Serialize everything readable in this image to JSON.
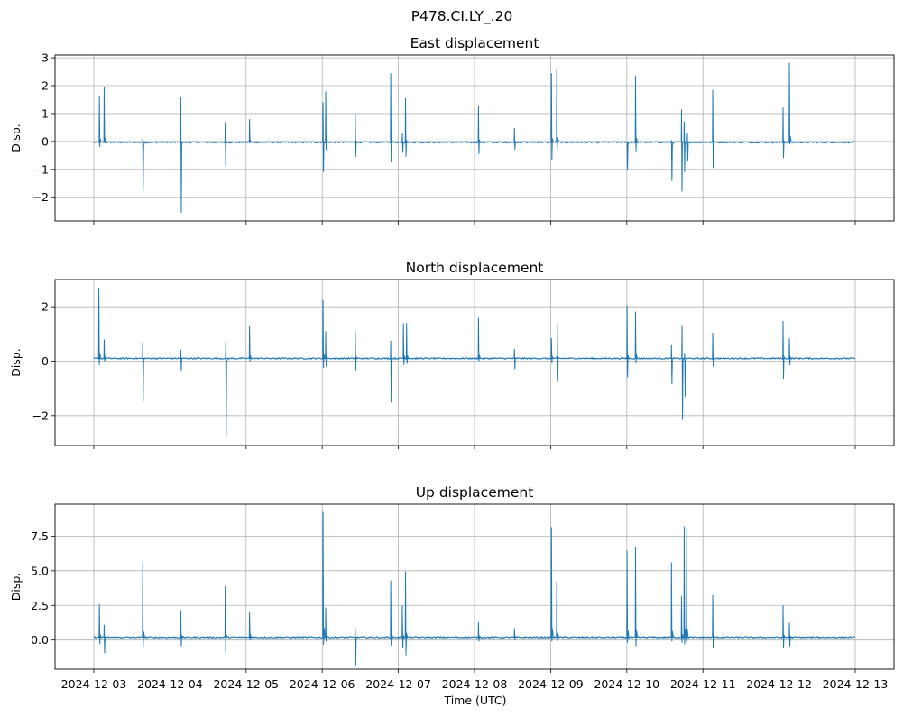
{
  "figure": {
    "suptitle": "P478.CI.LY_.20",
    "xlabel": "Time (UTC)",
    "line_color": "#1f77b4",
    "grid_color": "#b0b0b0"
  },
  "chart_data": [
    {
      "type": "line",
      "title": "East displacement",
      "ylabel": "Disp.",
      "xlabel": "",
      "xlim": [
        "2024-12-03",
        "2024-12-13"
      ],
      "ylim": [
        -2.85,
        3.1
      ],
      "yticks": [
        -2,
        -1,
        0,
        1,
        2,
        3
      ],
      "ytick_labels": [
        "−2",
        "−1",
        "0",
        "1",
        "2",
        "3"
      ],
      "grid": true,
      "baseline": -0.03,
      "spikes": [
        {
          "t": "2024-12-03 01:40",
          "min": -0.2,
          "max": 1.65
        },
        {
          "t": "2024-12-03 03:10",
          "min": -0.05,
          "max": 1.95
        },
        {
          "t": "2024-12-03 15:20",
          "min": -1.78,
          "max": 0.1
        },
        {
          "t": "2024-12-04 03:20",
          "min": -2.55,
          "max": 1.6
        },
        {
          "t": "2024-12-04 17:20",
          "min": -0.88,
          "max": 0.7
        },
        {
          "t": "2024-12-05 01:00",
          "min": -0.05,
          "max": 0.8
        },
        {
          "t": "2024-12-06 00:10",
          "min": -1.1,
          "max": 1.4
        },
        {
          "t": "2024-12-06 01:00",
          "min": -0.3,
          "max": 1.8
        },
        {
          "t": "2024-12-06 10:20",
          "min": -0.55,
          "max": 1.0
        },
        {
          "t": "2024-12-06 21:30",
          "min": -0.75,
          "max": 2.45
        },
        {
          "t": "2024-12-07 01:10",
          "min": -0.4,
          "max": 0.3
        },
        {
          "t": "2024-12-07 02:10",
          "min": -0.55,
          "max": 1.55
        },
        {
          "t": "2024-12-08 01:10",
          "min": -0.45,
          "max": 1.3
        },
        {
          "t": "2024-12-08 12:30",
          "min": -0.3,
          "max": 0.48
        },
        {
          "t": "2024-12-09 00:10",
          "min": -0.65,
          "max": 2.45
        },
        {
          "t": "2024-12-09 01:50",
          "min": -0.35,
          "max": 2.6
        },
        {
          "t": "2024-12-10 00:00",
          "min": -1.0,
          "max": 0.0
        },
        {
          "t": "2024-12-10 02:40",
          "min": -0.35,
          "max": 2.35
        },
        {
          "t": "2024-12-10 14:00",
          "min": -1.42,
          "max": 0.05
        },
        {
          "t": "2024-12-10 17:10",
          "min": -1.8,
          "max": 1.15
        },
        {
          "t": "2024-12-10 18:00",
          "min": -1.1,
          "max": 0.72
        },
        {
          "t": "2024-12-10 19:00",
          "min": -0.7,
          "max": 0.3
        },
        {
          "t": "2024-12-11 03:00",
          "min": -0.95,
          "max": 1.85
        },
        {
          "t": "2024-12-12 01:10",
          "min": -0.6,
          "max": 1.22
        },
        {
          "t": "2024-12-12 03:10",
          "min": -0.1,
          "max": 2.82
        }
      ]
    },
    {
      "type": "line",
      "title": "North displacement",
      "ylabel": "Disp.",
      "xlabel": "",
      "xlim": [
        "2024-12-03",
        "2024-12-13"
      ],
      "ylim": [
        -3.1,
        3.0
      ],
      "yticks": [
        -2,
        0,
        2
      ],
      "ytick_labels": [
        "−2",
        "0",
        "2"
      ],
      "grid": true,
      "baseline": 0.1,
      "spikes": [
        {
          "t": "2024-12-03 01:30",
          "min": -0.15,
          "max": 2.7
        },
        {
          "t": "2024-12-03 03:10",
          "min": 0.0,
          "max": 0.8
        },
        {
          "t": "2024-12-03 15:20",
          "min": -1.5,
          "max": 0.72
        },
        {
          "t": "2024-12-04 03:20",
          "min": -0.35,
          "max": 0.42
        },
        {
          "t": "2024-12-04 17:30",
          "min": -2.82,
          "max": 0.72
        },
        {
          "t": "2024-12-05 01:00",
          "min": 0.0,
          "max": 1.28
        },
        {
          "t": "2024-12-06 00:10",
          "min": -0.25,
          "max": 2.25
        },
        {
          "t": "2024-12-06 01:00",
          "min": -0.2,
          "max": 1.1
        },
        {
          "t": "2024-12-06 10:20",
          "min": -0.35,
          "max": 1.12
        },
        {
          "t": "2024-12-06 21:30",
          "min": -1.52,
          "max": 0.75
        },
        {
          "t": "2024-12-07 01:30",
          "min": -0.15,
          "max": 1.4
        },
        {
          "t": "2024-12-07 02:30",
          "min": -0.1,
          "max": 1.4
        },
        {
          "t": "2024-12-08 01:10",
          "min": 0.0,
          "max": 1.6
        },
        {
          "t": "2024-12-08 12:30",
          "min": -0.3,
          "max": 0.45
        },
        {
          "t": "2024-12-09 00:10",
          "min": -0.05,
          "max": 0.85
        },
        {
          "t": "2024-12-09 02:00",
          "min": -0.75,
          "max": 1.42
        },
        {
          "t": "2024-12-10 00:00",
          "min": -0.6,
          "max": 2.05
        },
        {
          "t": "2024-12-10 02:40",
          "min": -0.05,
          "max": 1.82
        },
        {
          "t": "2024-12-10 14:00",
          "min": -0.85,
          "max": 0.62
        },
        {
          "t": "2024-12-10 17:20",
          "min": -2.15,
          "max": 1.32
        },
        {
          "t": "2024-12-10 18:10",
          "min": -1.3,
          "max": 0.3
        },
        {
          "t": "2024-12-11 03:00",
          "min": -0.2,
          "max": 1.05
        },
        {
          "t": "2024-12-12 01:10",
          "min": -0.65,
          "max": 1.48
        },
        {
          "t": "2024-12-12 03:10",
          "min": -0.15,
          "max": 0.85
        }
      ]
    },
    {
      "type": "line",
      "title": "Up displacement",
      "ylabel": "Disp.",
      "xlabel": "Time (UTC)",
      "xlim": [
        "2024-12-03",
        "2024-12-13"
      ],
      "ylim": [
        -2.1,
        9.8
      ],
      "yticks": [
        0.0,
        2.5,
        5.0,
        7.5
      ],
      "ytick_labels": [
        "0.0",
        "2.5",
        "5.0",
        "7.5"
      ],
      "xticks": [
        "2024-12-03",
        "2024-12-04",
        "2024-12-05",
        "2024-12-06",
        "2024-12-07",
        "2024-12-08",
        "2024-12-09",
        "2024-12-10",
        "2024-12-11",
        "2024-12-12",
        "2024-12-13"
      ],
      "grid": true,
      "baseline": 0.2,
      "spikes": [
        {
          "t": "2024-12-03 01:40",
          "min": -0.3,
          "max": 2.6
        },
        {
          "t": "2024-12-03 03:10",
          "min": -0.95,
          "max": 1.1
        },
        {
          "t": "2024-12-03 15:20",
          "min": -0.5,
          "max": 5.65
        },
        {
          "t": "2024-12-04 03:20",
          "min": -0.45,
          "max": 2.15
        },
        {
          "t": "2024-12-04 17:20",
          "min": -0.95,
          "max": 3.9
        },
        {
          "t": "2024-12-05 01:00",
          "min": 0.0,
          "max": 2.0
        },
        {
          "t": "2024-12-06 00:10",
          "min": -0.35,
          "max": 9.25
        },
        {
          "t": "2024-12-06 01:00",
          "min": -0.1,
          "max": 2.35
        },
        {
          "t": "2024-12-06 10:20",
          "min": -1.85,
          "max": 0.85
        },
        {
          "t": "2024-12-06 21:30",
          "min": -0.4,
          "max": 4.3
        },
        {
          "t": "2024-12-07 01:10",
          "min": -0.6,
          "max": 2.5
        },
        {
          "t": "2024-12-07 02:10",
          "min": -1.1,
          "max": 4.95
        },
        {
          "t": "2024-12-08 01:10",
          "min": -0.1,
          "max": 1.3
        },
        {
          "t": "2024-12-08 12:30",
          "min": 0.0,
          "max": 0.85
        },
        {
          "t": "2024-12-09 00:10",
          "min": -0.1,
          "max": 8.15
        },
        {
          "t": "2024-12-09 01:50",
          "min": -0.1,
          "max": 4.2
        },
        {
          "t": "2024-12-10 00:00",
          "min": -0.2,
          "max": 6.45
        },
        {
          "t": "2024-12-10 02:40",
          "min": -0.45,
          "max": 6.75
        },
        {
          "t": "2024-12-10 14:00",
          "min": -0.1,
          "max": 5.6
        },
        {
          "t": "2024-12-10 17:10",
          "min": -0.2,
          "max": 3.15
        },
        {
          "t": "2024-12-10 18:00",
          "min": -0.3,
          "max": 8.2
        },
        {
          "t": "2024-12-10 18:40",
          "min": -0.1,
          "max": 8.05
        },
        {
          "t": "2024-12-11 03:00",
          "min": -0.6,
          "max": 3.25
        },
        {
          "t": "2024-12-12 01:10",
          "min": -0.55,
          "max": 2.5
        },
        {
          "t": "2024-12-12 03:10",
          "min": -0.45,
          "max": 1.25
        }
      ]
    }
  ]
}
